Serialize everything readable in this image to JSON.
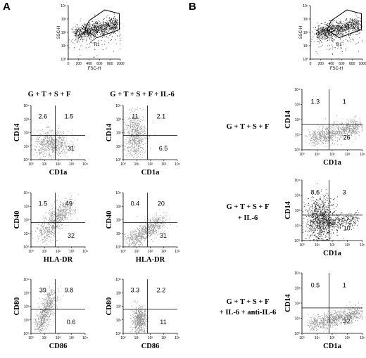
{
  "panel_a": {
    "letter": "A",
    "gate_plot": {
      "ylabel": "SSC-H",
      "xlabel": "FSC-H",
      "gate_label": "R1",
      "x_ticks": [
        "0",
        "200",
        "400",
        "600",
        "800",
        "1000"
      ],
      "y_ticks": [
        "10⁰",
        "10¹",
        "10²",
        "10³",
        "10⁴"
      ]
    },
    "columns": [
      {
        "condition": "G + T + S + F",
        "plots": [
          {
            "xlabel": "CD1a",
            "ylabel": "CD14",
            "q_ul": "2.6",
            "q_ur": "1.5",
            "q_lr": "31"
          },
          {
            "xlabel": "HLA-DR",
            "ylabel": "CD40",
            "q_ul": "1.5",
            "q_ur": "49",
            "q_lr": "32"
          },
          {
            "xlabel": "CD86",
            "ylabel": "CD80",
            "q_ul": "39",
            "q_ur": "9.8",
            "q_lr": "0.6"
          }
        ]
      },
      {
        "condition": "G + T + S + F + IL-6",
        "plots": [
          {
            "xlabel": "CD1a",
            "ylabel": "CD14",
            "q_ul": "11",
            "q_ur": "2.1",
            "q_lr": "6.5"
          },
          {
            "xlabel": "HLA-DR",
            "ylabel": "CD40",
            "q_ul": "0.4",
            "q_ur": "20",
            "q_lr": "31"
          },
          {
            "xlabel": "CD86",
            "ylabel": "CD80",
            "q_ul": "3.3",
            "q_ur": "2.2",
            "q_lr": "11"
          }
        ]
      }
    ]
  },
  "panel_b": {
    "letter": "B",
    "gate_plot": {
      "ylabel": "SSC-H",
      "xlabel": "FSC-H",
      "gate_label": "R1",
      "x_ticks": [
        "0",
        "200",
        "400",
        "600",
        "800",
        "1000"
      ],
      "y_ticks": [
        "10⁰",
        "10¹",
        "10²",
        "10³",
        "10⁴"
      ]
    },
    "rows": [
      {
        "condition_lines": [
          "G + T + S + F"
        ],
        "xlabel": "CD1a",
        "ylabel": "CD14",
        "q_ul": "1.3",
        "q_ur": "1",
        "q_lr": "26"
      },
      {
        "condition_lines": [
          "G + T + S + F",
          "+ IL-6"
        ],
        "xlabel": "CD1a",
        "ylabel": "CD14",
        "q_ul": "8.6",
        "q_ur": "3",
        "q_lr": "10"
      },
      {
        "condition_lines": [
          "G + T + S + F",
          "+ IL-6 + anti-IL-6"
        ],
        "xlabel": "CD1a",
        "ylabel": "CD14",
        "q_ul": "0.5",
        "q_ur": "1",
        "q_lr": "32"
      }
    ]
  },
  "log_ticks": [
    "10⁰",
    "10¹",
    "10²",
    "10³",
    "10⁴"
  ],
  "colors": {
    "dots_gray": "#8a8a8a",
    "dots_black": "#1a1a1a",
    "axis": "#000000"
  }
}
